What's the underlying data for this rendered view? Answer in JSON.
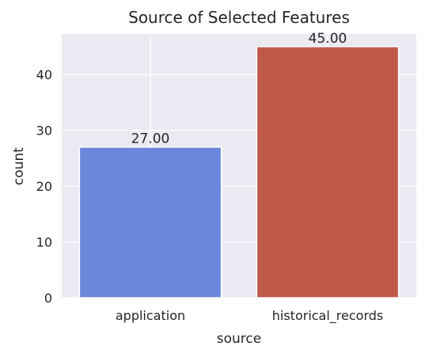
{
  "chart_data": {
    "type": "bar",
    "title": "Source of Selected Features",
    "xlabel": "source",
    "ylabel": "count",
    "categories": [
      "application",
      "historical_records"
    ],
    "values": [
      27,
      45
    ],
    "data_labels": [
      "27.00",
      "45.00"
    ],
    "ylim": [
      0,
      47.25
    ],
    "yticks": [
      0,
      10,
      20,
      30,
      40
    ],
    "ytick_labels": [
      "0",
      "10",
      "20",
      "30",
      "40"
    ],
    "grid": true,
    "colors": {
      "plot_background": "#eaeaf2",
      "grid": "#ffffff",
      "bars": [
        "#6b87d9",
        "#bf5a4b"
      ],
      "text": "#262626"
    }
  }
}
